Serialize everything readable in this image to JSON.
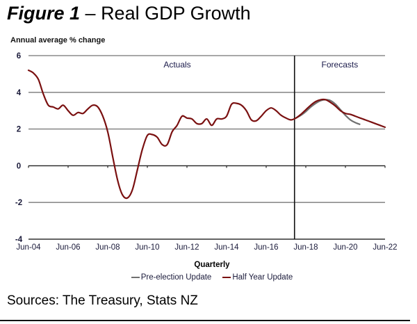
{
  "figure": {
    "number_label": "Figure 1",
    "dash": " – ",
    "title": "Real GDP Growth",
    "sources": "Sources:  The Treasury, Stats NZ"
  },
  "chart_data": {
    "type": "line",
    "title": "Real GDP Growth",
    "ylabel": "Annual average % change",
    "xlabel": "Quarterly",
    "ylim": [
      -4,
      6
    ],
    "yticks": [
      6,
      4,
      2,
      0,
      -2,
      -4
    ],
    "ytick_labels": [
      "6",
      "4",
      "2",
      "0",
      "-2",
      "-4"
    ],
    "xticks": [
      "Jun-04",
      "Jun-06",
      "Jun-08",
      "Jun-10",
      "Jun-12",
      "Jun-14",
      "Jun-16",
      "Jun-18",
      "Jun-20",
      "Jun-22"
    ],
    "x_start": "Jun-04",
    "x_end": "Jun-22",
    "frequency": "quarterly",
    "grid": true,
    "legend_position": "bottom",
    "annotations": {
      "actuals_label": "Actuals",
      "forecasts_label": "Forecasts",
      "forecast_start": "Dec-17"
    },
    "series": [
      {
        "name": "Pre-election Update",
        "color": "#707070",
        "start": "Dec-17",
        "values": [
          2.6,
          2.75,
          2.95,
          3.2,
          3.4,
          3.55,
          3.6,
          3.55,
          3.35,
          3.05,
          2.75,
          2.5,
          2.35,
          2.25
        ]
      },
      {
        "name": "Half Year Update",
        "color": "#7a1010",
        "start": "Jun-04",
        "values": [
          5.2,
          5.05,
          4.7,
          3.9,
          3.3,
          3.2,
          3.1,
          3.3,
          3.0,
          2.75,
          2.9,
          2.85,
          3.1,
          3.3,
          3.2,
          2.7,
          1.85,
          0.5,
          -0.8,
          -1.6,
          -1.75,
          -1.3,
          -0.2,
          0.9,
          1.65,
          1.7,
          1.55,
          1.15,
          1.15,
          1.85,
          2.2,
          2.7,
          2.6,
          2.55,
          2.3,
          2.3,
          2.55,
          2.2,
          2.55,
          2.55,
          2.7,
          3.35,
          3.4,
          3.3,
          3.0,
          2.5,
          2.45,
          2.7,
          3.0,
          3.15,
          3.0,
          2.75,
          2.6,
          2.5,
          2.6,
          2.8,
          3.05,
          3.3,
          3.5,
          3.6,
          3.6,
          3.45,
          3.25,
          3.0,
          2.85,
          2.8,
          2.7,
          2.6,
          2.5,
          2.4,
          2.3,
          2.2,
          2.1
        ]
      }
    ]
  }
}
